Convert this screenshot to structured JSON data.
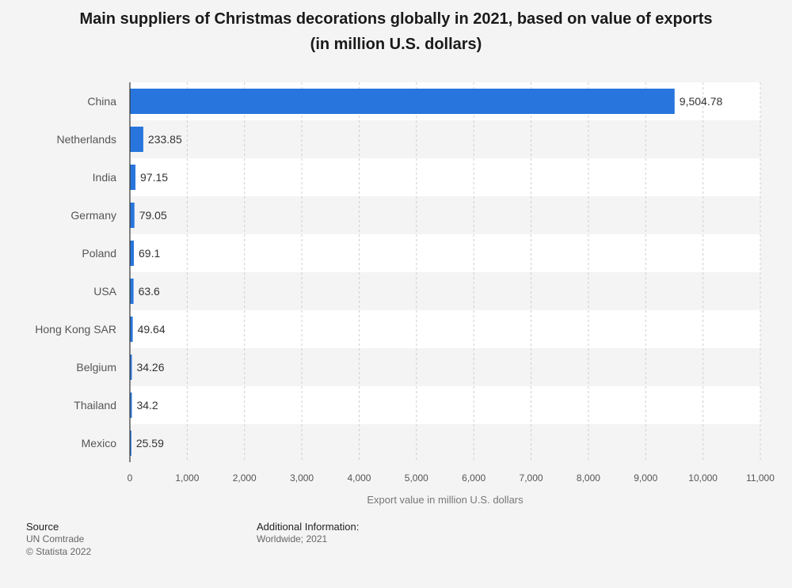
{
  "title_line1": "Main suppliers of Christmas decorations globally in 2021, based on value of exports",
  "title_line2": "(in million U.S. dollars)",
  "chart_data": {
    "type": "bar",
    "orientation": "horizontal",
    "categories": [
      "China",
      "Netherlands",
      "India",
      "Germany",
      "Poland",
      "USA",
      "Hong Kong SAR",
      "Belgium",
      "Thailand",
      "Mexico"
    ],
    "values": [
      9504.78,
      233.85,
      97.15,
      79.05,
      69.1,
      63.6,
      49.64,
      34.26,
      34.2,
      25.59
    ],
    "value_labels": [
      "9,504.78",
      "233.85",
      "97.15",
      "79.05",
      "69.1",
      "63.6",
      "49.64",
      "34.26",
      "34.2",
      "25.59"
    ],
    "xlabel": "Export value in million U.S. dollars",
    "xlim": [
      0,
      11000
    ],
    "xticks": [
      0,
      1000,
      2000,
      3000,
      4000,
      5000,
      6000,
      7000,
      8000,
      9000,
      10000,
      11000
    ],
    "xtick_labels": [
      "0",
      "1,000",
      "2,000",
      "3,000",
      "4,000",
      "5,000",
      "6,000",
      "7,000",
      "8,000",
      "9,000",
      "10,000",
      "11,000"
    ],
    "grid": true,
    "bar_color": "#2876dd"
  },
  "footer": {
    "source_heading": "Source",
    "source_lines": [
      "UN Comtrade",
      "© Statista 2022"
    ],
    "info_heading": "Additional Information:",
    "info_lines": [
      "Worldwide; 2021"
    ]
  }
}
